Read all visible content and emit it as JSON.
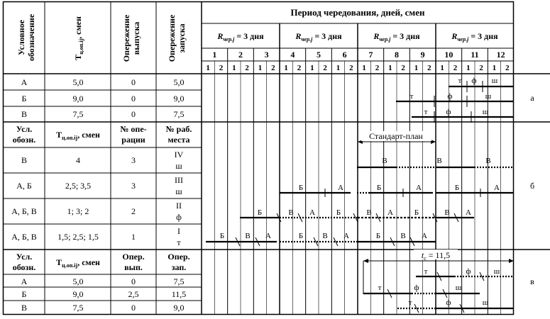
{
  "header": {
    "col_label": "Условное обозначение",
    "col_duration": "T ц.оп.ij, смен",
    "col_lead_out": "Опережение выпуска",
    "col_lead_in": "Опережение запуска",
    "period_title": "Период чередования, дней, смен",
    "period_groups": [
      "R чер.j = 3 дня",
      "R чер.j = 3 дня",
      "R чер.j = 3 дня",
      "R чер.j = 3 дня"
    ],
    "days": [
      "1",
      "2",
      "3",
      "4",
      "5",
      "6",
      "7",
      "8",
      "9",
      "10",
      "11",
      "12"
    ],
    "shift_labels": [
      "1",
      "2"
    ]
  },
  "section_a": {
    "tag": "а",
    "rows": [
      {
        "label": "А",
        "duration": "5,0",
        "lead_out": "0",
        "lead_in": "5,0"
      },
      {
        "label": "Б",
        "duration": "9,0",
        "lead_out": "0",
        "lead_in": "9,0"
      },
      {
        "label": "В",
        "duration": "7,5",
        "lead_out": "0",
        "lead_in": "7,5"
      }
    ],
    "bar_letters": [
      "т",
      "ф",
      "ш"
    ]
  },
  "section_b": {
    "tag": "б",
    "head": [
      "Усл. обозн.",
      "T ц.оп.ij, смен",
      "№ опе- рации",
      "№ раб. места"
    ],
    "rows": [
      {
        "label": "В",
        "duration": "4",
        "op": "3",
        "ws_num": "IV",
        "ws_code": "ш"
      },
      {
        "label": "А, Б",
        "duration": "2,5; 3,5",
        "op": "3",
        "ws_num": "III",
        "ws_code": "ш"
      },
      {
        "label": "А, Б, В",
        "duration": "1; 3; 2",
        "op": "2",
        "ws_num": "II",
        "ws_code": "ф"
      },
      {
        "label": "А, Б, В",
        "duration": "1,5; 2,5; 1,5",
        "op": "1",
        "ws_num": "I",
        "ws_code": "т"
      }
    ],
    "standard_plan": "Стандарт-план",
    "bar_letters": [
      "А",
      "Б",
      "В"
    ]
  },
  "section_c": {
    "tag": "в",
    "head": [
      "Усл. обозн.",
      "T ц.оп.ij, смен",
      "Опер. вып.",
      "Опер. зап."
    ],
    "rows": [
      {
        "label": "А",
        "duration": "5,0",
        "lead_out": "0",
        "lead_in": "7,5"
      },
      {
        "label": "Б",
        "duration": "9,0",
        "lead_out": "2,5",
        "lead_in": "11,5"
      },
      {
        "label": "В",
        "duration": "7,5",
        "lead_out": "0",
        "lead_in": "9,0"
      }
    ],
    "tc_note": "t c = 11,5",
    "bar_letters": [
      "т",
      "ф",
      "ш"
    ]
  }
}
